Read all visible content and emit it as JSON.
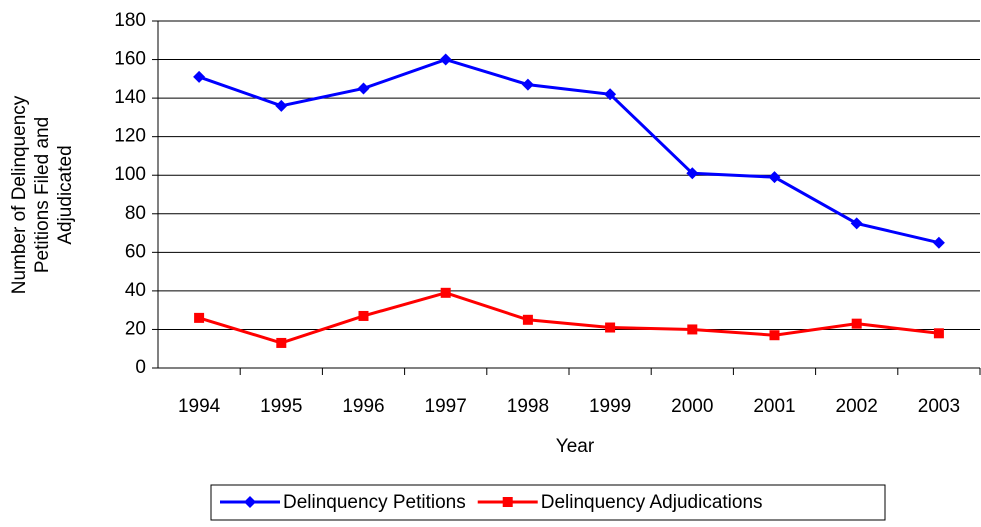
{
  "chart_data": {
    "type": "line",
    "x_label": "Year",
    "y_label": [
      "Number of Delinquency",
      "Petitions Filed and",
      "Adjudicated"
    ],
    "categories": [
      "1994",
      "1995",
      "1996",
      "1997",
      "1998",
      "1999",
      "2000",
      "2001",
      "2002",
      "2003"
    ],
    "series": [
      {
        "name": "Delinquency Petitions",
        "color": "#0000ff",
        "marker": "diamond",
        "values": [
          151,
          136,
          145,
          160,
          147,
          142,
          101,
          99,
          75,
          65
        ]
      },
      {
        "name": "Delinquency Adjudications",
        "color": "#ff0000",
        "marker": "square",
        "values": [
          26,
          13,
          27,
          39,
          25,
          21,
          20,
          17,
          23,
          18
        ]
      }
    ],
    "ylim": [
      0,
      180
    ],
    "yticks": [
      0,
      20,
      40,
      60,
      80,
      100,
      120,
      140,
      160,
      180
    ],
    "grid": true,
    "legend": "bottom"
  }
}
